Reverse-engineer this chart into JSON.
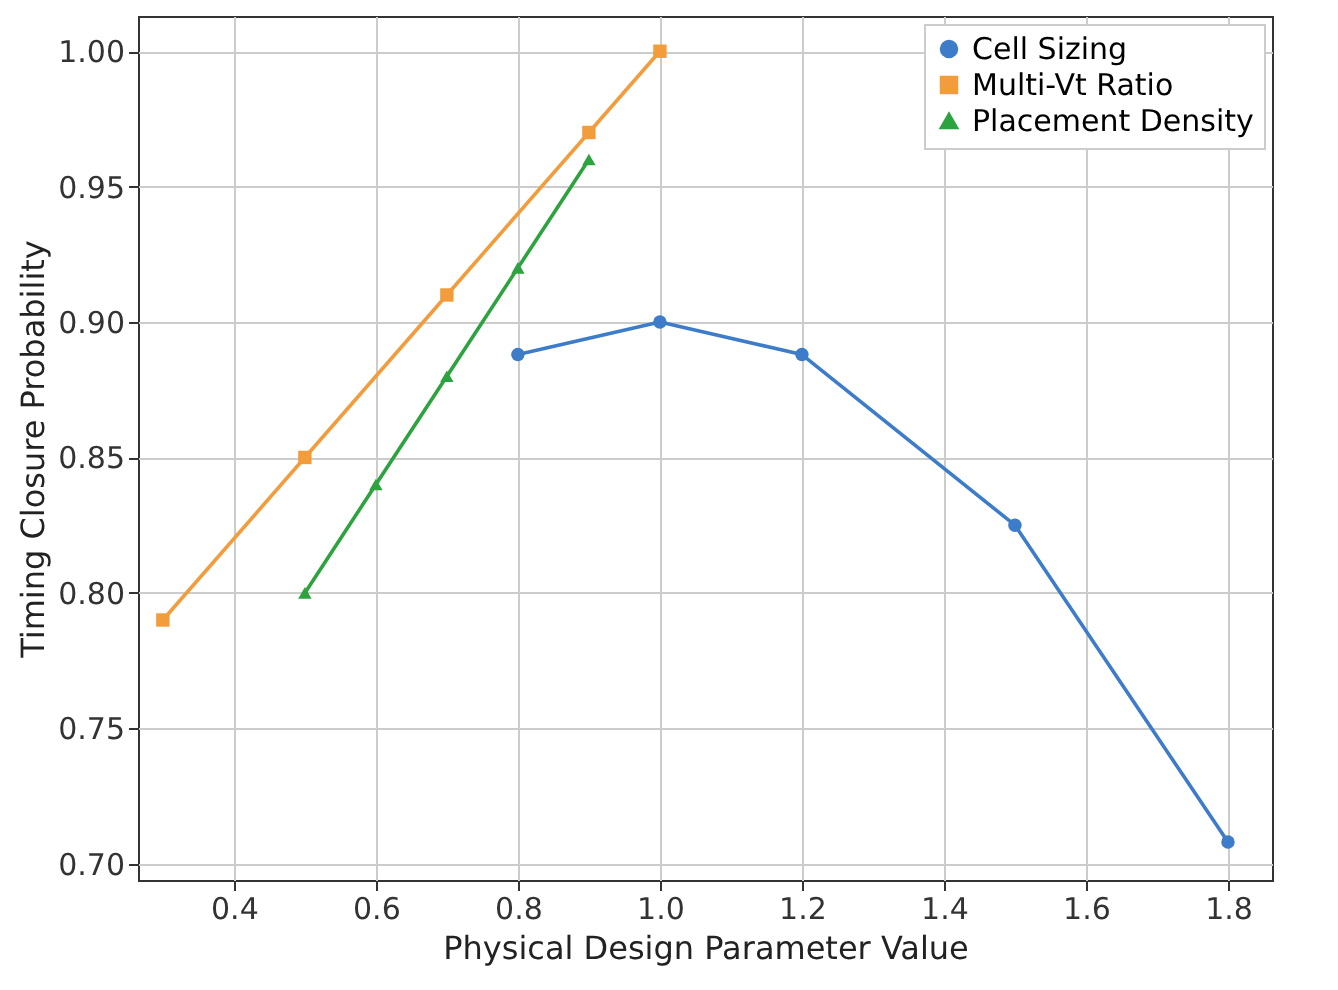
{
  "chart_data": {
    "type": "line",
    "xlabel": "Physical Design Parameter Value",
    "ylabel": "Timing Closure Probability",
    "xlim": [
      0.265,
      1.862
    ],
    "xticks": [
      0.4,
      0.6,
      0.8,
      {
        "value": 1,
        "label": "1.0"
      },
      1.2,
      1.4,
      1.6,
      1.8
    ],
    "ylim": [
      0.694,
      1.013
    ],
    "yticks": [
      {
        "value": 0.7,
        "label": "0.70"
      },
      0.75,
      {
        "value": 0.8,
        "label": "0.80"
      },
      0.85,
      {
        "value": 0.9,
        "label": "0.90"
      },
      0.95,
      {
        "value": 1,
        "label": "1.00"
      }
    ],
    "grid": true,
    "legend": "top right",
    "line_style": "solid",
    "series": [
      {
        "name": "Cell Sizing",
        "color": "#3d7cc9",
        "marker": "circle",
        "x": [
          0.8,
          1.0,
          1.2,
          1.5,
          1.8
        ],
        "values": [
          0.888,
          0.9,
          0.888,
          0.825,
          0.708
        ]
      },
      {
        "name": "Multi-Vt Ratio",
        "color": "#f39c3c",
        "marker": "square",
        "x": [
          0.3,
          0.5,
          0.7,
          0.9,
          1.0
        ],
        "values": [
          0.79,
          0.85,
          0.91,
          0.97,
          1.0
        ]
      },
      {
        "name": "Placement Density",
        "color": "#2ca33e",
        "marker": "triangle",
        "x": [
          0.5,
          0.6,
          0.7,
          0.8,
          0.9
        ],
        "values": [
          0.8,
          0.84,
          0.88,
          0.92,
          0.96
        ]
      }
    ]
  }
}
